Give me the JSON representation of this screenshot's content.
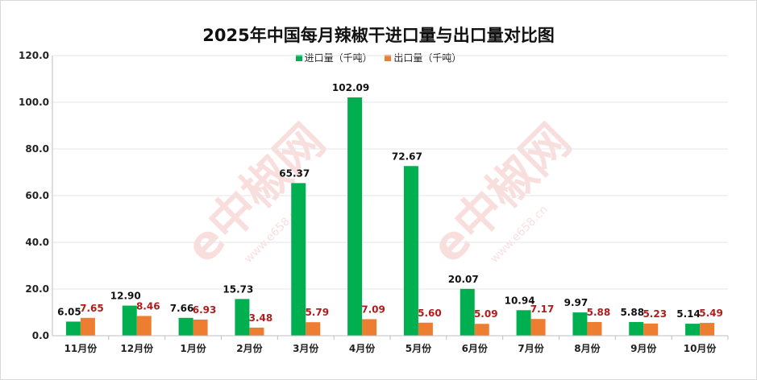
{
  "colors": {
    "import": "#00b050",
    "export": "#ed7d31",
    "import_label": "#111111",
    "export_label": "#b01c1c"
  },
  "watermark": {
    "text": "e中椒网",
    "url": "www.e658.cn"
  },
  "chart_data": {
    "type": "bar",
    "title": "2025年中国每月辣椒干进口量与出口量对比图",
    "categories": [
      "11月份",
      "12月份",
      "1月份",
      "2月份",
      "3月份",
      "4月份",
      "5月份",
      "6月份",
      "7月份",
      "8月份",
      "9月份",
      "10月份"
    ],
    "series": [
      {
        "name": "进口量（千吨）",
        "values": [
          6.05,
          12.9,
          7.66,
          15.73,
          65.37,
          102.09,
          72.67,
          20.07,
          10.94,
          9.97,
          5.88,
          5.14
        ]
      },
      {
        "name": "出口量（千吨）",
        "values": [
          7.65,
          8.46,
          6.93,
          3.48,
          5.79,
          7.09,
          5.6,
          5.09,
          7.17,
          5.88,
          5.23,
          5.49
        ]
      }
    ],
    "ylim": [
      0,
      120
    ],
    "yticks": [
      "0.0",
      "20.0",
      "40.0",
      "60.0",
      "80.0",
      "100.0",
      "120.0"
    ],
    "grid": true,
    "legend_position": "top"
  }
}
